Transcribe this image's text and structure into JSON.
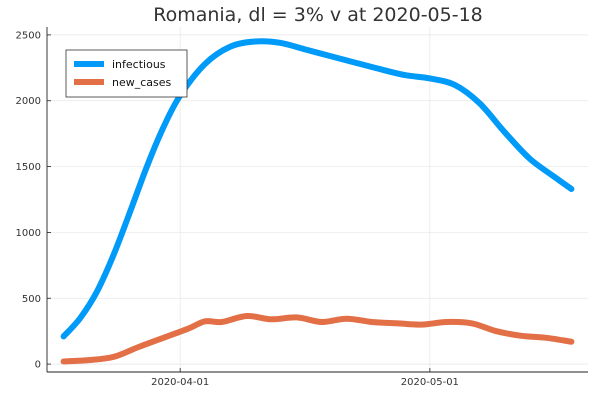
{
  "chart_data": {
    "type": "line",
    "title": "Romania,  dl = 3% v at 2020-05-18",
    "xlabel": "",
    "ylabel": "",
    "x_start": "2020-03-18",
    "x_end": "2020-05-18",
    "xlim": [
      "2020-03-16",
      "2020-05-20"
    ],
    "ylim": [
      -60,
      2560
    ],
    "x_ticks": [
      "2020-04-01",
      "2020-05-01"
    ],
    "y_ticks": [
      0,
      500,
      1000,
      1500,
      2000,
      2500
    ],
    "grid": true,
    "legend_position": "top-left",
    "series": [
      {
        "name": "infectious",
        "color": "#009af9",
        "x": [
          "2020-03-18",
          "2020-03-20",
          "2020-03-22",
          "2020-03-24",
          "2020-03-26",
          "2020-03-28",
          "2020-03-30",
          "2020-04-01",
          "2020-04-04",
          "2020-04-07",
          "2020-04-10",
          "2020-04-13",
          "2020-04-16",
          "2020-04-19",
          "2020-04-22",
          "2020-04-25",
          "2020-04-28",
          "2020-05-01",
          "2020-05-04",
          "2020-05-07",
          "2020-05-10",
          "2020-05-13",
          "2020-05-16",
          "2020-05-18"
        ],
        "y": [
          210,
          350,
          550,
          830,
          1160,
          1500,
          1800,
          2040,
          2280,
          2410,
          2450,
          2440,
          2390,
          2340,
          2290,
          2240,
          2195,
          2170,
          2120,
          1980,
          1760,
          1560,
          1420,
          1330
        ]
      },
      {
        "name": "new_cases",
        "color": "#e26f46",
        "x": [
          "2020-03-18",
          "2020-03-21",
          "2020-03-24",
          "2020-03-27",
          "2020-03-30",
          "2020-04-02",
          "2020-04-04",
          "2020-04-06",
          "2020-04-09",
          "2020-04-12",
          "2020-04-15",
          "2020-04-18",
          "2020-04-21",
          "2020-04-24",
          "2020-04-27",
          "2020-04-30",
          "2020-05-03",
          "2020-05-06",
          "2020-05-09",
          "2020-05-12",
          "2020-05-15",
          "2020-05-18"
        ],
        "y": [
          20,
          30,
          55,
          130,
          200,
          270,
          325,
          320,
          365,
          340,
          355,
          320,
          345,
          320,
          310,
          300,
          320,
          310,
          250,
          215,
          200,
          170
        ]
      }
    ]
  }
}
